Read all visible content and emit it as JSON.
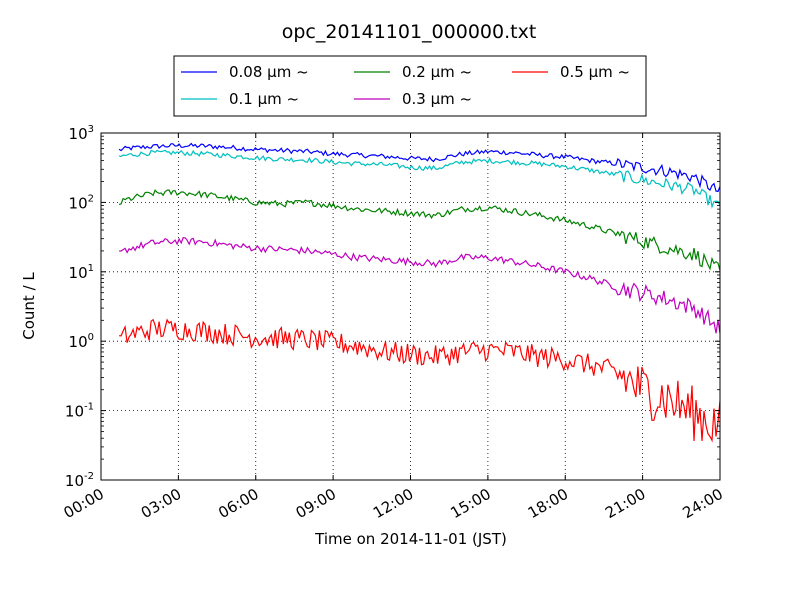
{
  "chart_data": {
    "type": "line",
    "title": "opc_20141101_000000.txt",
    "xlabel": "Time on 2014-11-01 (JST)",
    "ylabel": "Count / L",
    "y_scale": "log",
    "ylim": [
      0.01,
      1000
    ],
    "xlim": [
      "2014-11-01 00:00",
      "2014-11-02 00:00"
    ],
    "grid": true,
    "legend_position": "top",
    "x_tick_labels": [
      "00:00",
      "03:00",
      "06:00",
      "09:00",
      "12:00",
      "15:00",
      "18:00",
      "21:00",
      "24:00"
    ],
    "y_tick_mantissa": "10",
    "y_tick_exponents": [
      "-2",
      "-1",
      "0",
      "1",
      "2",
      "3"
    ],
    "x_hours": [
      0,
      1,
      2,
      3,
      4,
      5,
      6,
      7,
      8,
      9,
      10,
      11,
      12,
      13,
      14,
      15,
      16,
      17,
      18,
      19,
      20,
      21,
      22,
      23,
      24
    ],
    "series": [
      {
        "name": "0.08 μm ~",
        "color": "#0000ff",
        "values": [
          500,
          600,
          640,
          660,
          650,
          620,
          580,
          560,
          540,
          500,
          480,
          460,
          430,
          420,
          500,
          540,
          520,
          480,
          450,
          400,
          360,
          320,
          280,
          230,
          140
        ]
      },
      {
        "name": "0.1 μm ~",
        "color": "#00bfbf",
        "values": [
          400,
          480,
          520,
          520,
          500,
          470,
          440,
          420,
          410,
          380,
          360,
          350,
          320,
          310,
          380,
          400,
          380,
          360,
          330,
          290,
          250,
          210,
          180,
          150,
          85
        ]
      },
      {
        "name": "0.2 μm ~",
        "color": "#008000",
        "values": [
          70,
          110,
          135,
          140,
          130,
          115,
          100,
          95,
          100,
          90,
          80,
          75,
          70,
          65,
          80,
          85,
          75,
          65,
          55,
          45,
          35,
          28,
          22,
          18,
          10
        ]
      },
      {
        "name": "0.3 μm ~",
        "color": "#bf00bf",
        "values": [
          13,
          21,
          26,
          28,
          27,
          24,
          22,
          21,
          20,
          18,
          16,
          15,
          14,
          13,
          16,
          16,
          14,
          12,
          10,
          8,
          6,
          5,
          4,
          3,
          1.5
        ]
      },
      {
        "name": "0.5 μm ~",
        "color": "#ff0000",
        "values": [
          0.7,
          1.2,
          1.5,
          1.5,
          1.4,
          1.25,
          1.15,
          1.1,
          1.05,
          0.95,
          0.85,
          0.7,
          0.65,
          0.6,
          0.7,
          0.75,
          0.7,
          0.6,
          0.55,
          0.45,
          0.35,
          0.2,
          0.15,
          0.09,
          0.06
        ]
      }
    ]
  }
}
